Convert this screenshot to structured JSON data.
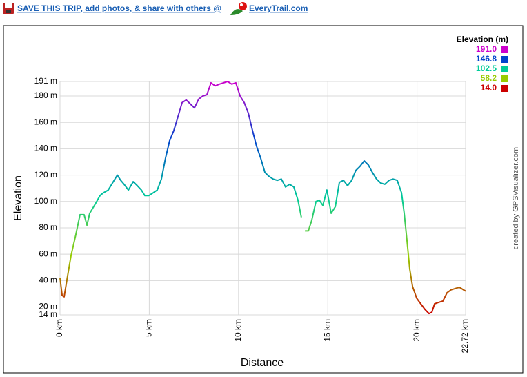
{
  "banner": {
    "text": "SAVE THIS TRIP, add photos, & share with others @",
    "site": "EveryTrail.com"
  },
  "chart_data": {
    "type": "line",
    "x_label": "Distance",
    "y_label": "Elevation",
    "credit": "created by GPSVisualizer.com",
    "legend": {
      "title": "Elevation (m)",
      "entries": [
        {
          "value": 191,
          "label": "191.0",
          "color": "#cc00cc"
        },
        {
          "value": 146.8,
          "label": "146.8",
          "color": "#0044cc"
        },
        {
          "value": 102.5,
          "label": "102.5",
          "color": "#00cc99"
        },
        {
          "value": 58.2,
          "label": "58.2",
          "color": "#99cc00"
        },
        {
          "value": 14,
          "label": "14.0",
          "color": "#cc0000"
        }
      ]
    },
    "x": [
      0,
      0.12,
      0.23,
      0.39,
      0.62,
      0.89,
      1.12,
      1.35,
      1.51,
      1.66,
      1.97,
      2.24,
      2.43,
      2.7,
      2.94,
      3.21,
      3.4,
      3.59,
      3.83,
      4.1,
      4.33,
      4.56,
      4.75,
      4.98,
      5.22,
      5.45,
      5.68,
      5.91,
      6.14,
      6.38,
      6.61,
      6.84,
      7.07,
      7.3,
      7.53,
      7.77,
      8.0,
      8.23,
      8.46,
      8.69,
      8.93,
      9.16,
      9.39,
      9.62,
      9.85,
      10.09,
      10.32,
      10.55,
      10.78,
      11.01,
      11.24,
      11.48,
      11.71,
      11.94,
      12.17,
      12.4,
      12.63,
      12.86,
      13.1,
      13.33,
      13.52,
      13.62,
      13.72,
      13.91,
      14.1,
      14.34,
      14.53,
      14.72,
      14.95,
      15.19,
      15.42,
      15.65,
      15.88,
      16.11,
      16.34,
      16.57,
      16.8,
      17.04,
      17.27,
      17.5,
      17.73,
      17.96,
      18.19,
      18.43,
      18.66,
      18.89,
      19.13,
      19.28,
      19.44,
      19.59,
      19.75,
      19.98,
      20.21,
      20.44,
      20.67,
      20.83,
      20.98,
      21.21,
      21.45,
      21.68,
      21.91,
      22.14,
      22.37,
      22.72
    ],
    "series": [
      {
        "name": "Elevation",
        "values": [
          42,
          28.7,
          27.7,
          40.8,
          59,
          75,
          90,
          90,
          82,
          91,
          98,
          104.5,
          106.6,
          108.7,
          114,
          120,
          116,
          113,
          108.7,
          115,
          112,
          108.7,
          104.5,
          104.5,
          106.6,
          108.7,
          117,
          133,
          146,
          154,
          164.5,
          175,
          177,
          174,
          171,
          177.7,
          180,
          181,
          190,
          187.7,
          189,
          190,
          191,
          189,
          190,
          180,
          175,
          167,
          154,
          142,
          133,
          122,
          119,
          117,
          116,
          117,
          111,
          113,
          111,
          101,
          88,
          null,
          77.7,
          77.7,
          85.6,
          100,
          101,
          97,
          108.7,
          91,
          96,
          114.5,
          116,
          112,
          116,
          123.5,
          126.6,
          130.8,
          127.7,
          122,
          117,
          114,
          113,
          116,
          117,
          116,
          106.6,
          91,
          70,
          48.7,
          35.6,
          26.6,
          22.4,
          18.2,
          15,
          16,
          22.4,
          23.5,
          24.5,
          30.8,
          33,
          34,
          35,
          32
        ]
      }
    ],
    "xlim": [
      0,
      22.72
    ],
    "xticks": [
      {
        "value": 0,
        "label": "0 km"
      },
      {
        "value": 5,
        "label": "5 km"
      },
      {
        "value": 10,
        "label": "10 km"
      },
      {
        "value": 15,
        "label": "15 km"
      },
      {
        "value": 20,
        "label": "20 km"
      },
      {
        "value": 22.72,
        "label": "22.72 km"
      }
    ],
    "ylim": [
      14,
      191
    ],
    "yticks": [
      {
        "value": 14,
        "label": "14 m"
      },
      {
        "value": 20,
        "label": "20 m"
      },
      {
        "value": 40,
        "label": "40 m"
      },
      {
        "value": 60,
        "label": "60 m"
      },
      {
        "value": 80,
        "label": "80 m"
      },
      {
        "value": 100,
        "label": "100 m"
      },
      {
        "value": 120,
        "label": "120 m"
      },
      {
        "value": 140,
        "label": "140 m"
      },
      {
        "value": 160,
        "label": "160 m"
      },
      {
        "value": 180,
        "label": "180 m"
      },
      {
        "value": 191,
        "label": "191 m"
      }
    ],
    "grid": true
  }
}
